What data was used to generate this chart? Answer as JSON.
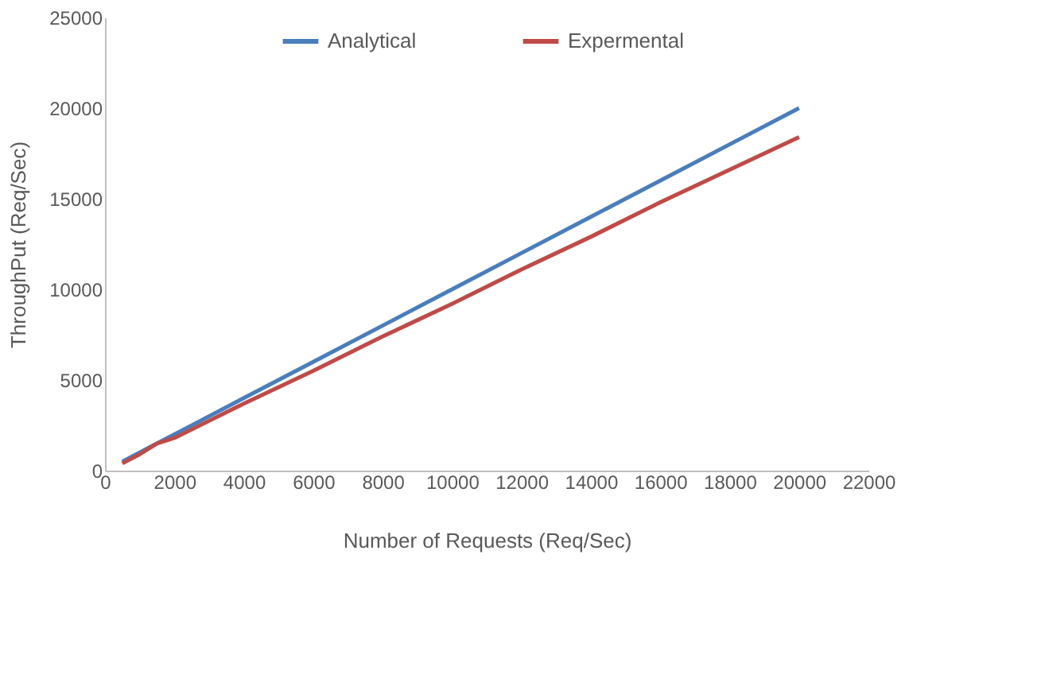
{
  "chart_data": {
    "type": "line",
    "xlabel": "Number of Requests (Req/Sec)",
    "ylabel": "ThroughPut (Req/Sec)",
    "x": [
      500,
      1000,
      1500,
      2000,
      4000,
      6000,
      8000,
      10000,
      12000,
      14000,
      16000,
      18000,
      20000
    ],
    "series": [
      {
        "name": "Analytical",
        "color": "#4a7ebb",
        "values": [
          500,
          1000,
          1500,
          2000,
          4000,
          6000,
          8000,
          10000,
          12000,
          14000,
          16000,
          18000,
          20000
        ]
      },
      {
        "name": "Expermental",
        "color": "#be4b48",
        "values": [
          400,
          900,
          1500,
          1800,
          3700,
          5500,
          7400,
          9200,
          11100,
          12900,
          14800,
          16600,
          18400
        ]
      }
    ],
    "xlim": [
      0,
      22000
    ],
    "xticks": [
      0,
      2000,
      4000,
      6000,
      8000,
      10000,
      12000,
      14000,
      16000,
      18000,
      20000,
      22000
    ],
    "ylim": [
      0,
      25000
    ],
    "yticks": [
      0,
      5000,
      10000,
      15000,
      20000,
      25000
    ],
    "grid": false,
    "legend": "top",
    "marker": "none",
    "line_style": "solid"
  }
}
